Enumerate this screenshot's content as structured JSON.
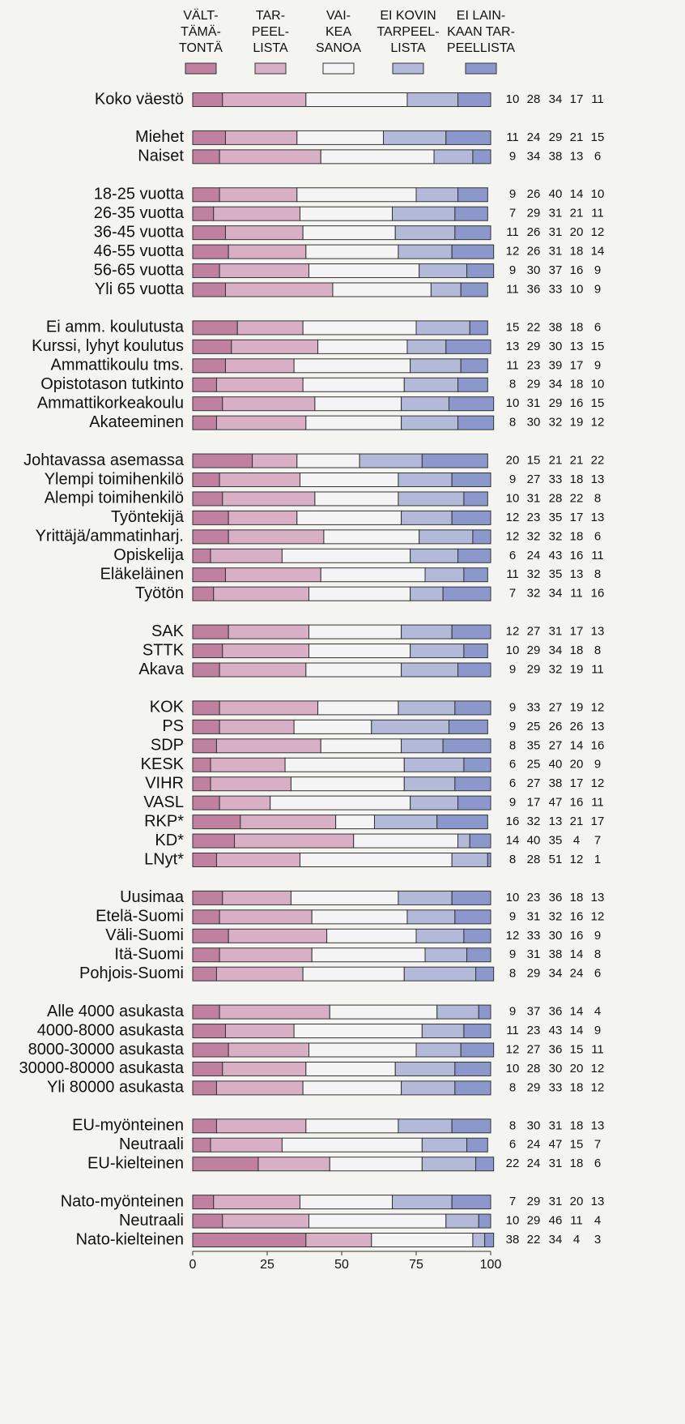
{
  "chart_data": {
    "type": "bar",
    "stacked": true,
    "orientation": "horizontal",
    "categories": [
      "Koko väestö",
      null,
      "Miehet",
      "Naiset",
      null,
      "18-25 vuotta",
      "26-35 vuotta",
      "36-45 vuotta",
      "46-55 vuotta",
      "56-65 vuotta",
      "Yli 65 vuotta",
      null,
      "Ei amm. koulutusta",
      "Kurssi, lyhyt koulutus",
      "Ammattikoulu tms.",
      "Opistotason tutkinto",
      "Ammattikorkeakoulu",
      "Akateeminen",
      null,
      "Johtavassa asemassa",
      "Ylempi toimihenkilö",
      "Alempi toimihenkilö",
      "Työntekijä",
      "Yrittäjä/ammatinharj.",
      "Opiskelija",
      "Eläkeläinen",
      "Työtön",
      null,
      "SAK",
      "STTK",
      "Akava",
      null,
      "KOK",
      "PS",
      "SDP",
      "KESK",
      "VIHR",
      "VASL",
      "RKP*",
      "KD*",
      "LNyt*",
      null,
      "Uusimaa",
      "Etelä-Suomi",
      "Väli-Suomi",
      "Itä-Suomi",
      "Pohjois-Suomi",
      null,
      "Alle 4000 asukasta",
      "4000-8000 asukasta",
      "8000-30000 asukasta",
      "30000-80000 asukasta",
      "Yli 80000 asukasta",
      null,
      "EU-myönteinen",
      "Neutraali",
      "EU-kielteinen",
      null,
      "Nato-myönteinen",
      "Neutraali",
      "Nato-kielteinen"
    ],
    "series": [
      {
        "name": "VÄLT-\nTÄMÄ-\nTONTÄ",
        "color": "#c0809f",
        "values": [
          10,
          null,
          11,
          9,
          null,
          9,
          7,
          11,
          12,
          9,
          11,
          null,
          15,
          13,
          11,
          8,
          10,
          8,
          null,
          20,
          9,
          10,
          12,
          12,
          6,
          11,
          7,
          null,
          12,
          10,
          9,
          null,
          9,
          9,
          8,
          6,
          6,
          9,
          16,
          14,
          8,
          null,
          10,
          9,
          12,
          9,
          8,
          null,
          9,
          11,
          12,
          10,
          8,
          null,
          8,
          6,
          22,
          null,
          7,
          10,
          38
        ]
      },
      {
        "name": "TAR-\nPEEL-\nLISTA",
        "color": "#d8afc4",
        "values": [
          28,
          null,
          24,
          34,
          null,
          26,
          29,
          26,
          26,
          30,
          36,
          null,
          22,
          29,
          23,
          29,
          31,
          30,
          null,
          15,
          27,
          31,
          23,
          32,
          24,
          32,
          32,
          null,
          27,
          29,
          29,
          null,
          33,
          25,
          35,
          25,
          27,
          17,
          32,
          40,
          28,
          null,
          23,
          31,
          33,
          31,
          29,
          null,
          37,
          23,
          27,
          28,
          29,
          null,
          30,
          24,
          24,
          null,
          29,
          29,
          22
        ]
      },
      {
        "name": "VAI-\nKEA\nSANOA",
        "color": "#f4f4f4",
        "values": [
          34,
          null,
          29,
          38,
          null,
          40,
          31,
          31,
          31,
          37,
          33,
          null,
          38,
          30,
          39,
          34,
          29,
          32,
          null,
          21,
          33,
          28,
          35,
          32,
          43,
          35,
          34,
          null,
          31,
          34,
          32,
          null,
          27,
          26,
          27,
          40,
          38,
          47,
          13,
          35,
          51,
          null,
          36,
          32,
          30,
          38,
          34,
          null,
          36,
          43,
          36,
          30,
          33,
          null,
          31,
          47,
          31,
          null,
          31,
          46,
          34
        ]
      },
      {
        "name": "EI KOVIN\nTARPEEL-\nLISTA",
        "color": "#b3bad9",
        "values": [
          17,
          null,
          21,
          13,
          null,
          14,
          21,
          20,
          18,
          16,
          10,
          null,
          18,
          13,
          17,
          18,
          16,
          19,
          null,
          21,
          18,
          22,
          17,
          18,
          16,
          13,
          11,
          null,
          17,
          18,
          19,
          null,
          19,
          26,
          14,
          20,
          17,
          16,
          21,
          4,
          12,
          null,
          18,
          16,
          16,
          14,
          24,
          null,
          14,
          14,
          15,
          20,
          18,
          null,
          18,
          15,
          18,
          null,
          20,
          11,
          4
        ]
      },
      {
        "name": "EI LAIN-\nKAAN TAR-\nPEELLISTA",
        "color": "#8c98cc",
        "values": [
          11,
          null,
          15,
          6,
          null,
          10,
          11,
          12,
          14,
          9,
          9,
          null,
          6,
          15,
          9,
          10,
          15,
          12,
          null,
          22,
          13,
          8,
          13,
          6,
          11,
          8,
          16,
          null,
          13,
          8,
          11,
          null,
          12,
          13,
          16,
          9,
          12,
          11,
          17,
          7,
          1,
          null,
          13,
          12,
          9,
          8,
          6,
          null,
          4,
          9,
          11,
          12,
          12,
          null,
          13,
          7,
          6,
          null,
          13,
          4,
          3
        ]
      }
    ],
    "xlim": [
      0,
      100
    ],
    "xticks": [
      0,
      25,
      50,
      75,
      100
    ],
    "grid": false,
    "legend": "top"
  }
}
